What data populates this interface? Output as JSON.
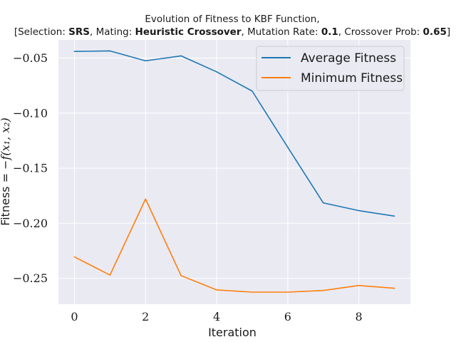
{
  "chart_data": {
    "type": "line",
    "title_line1": "Evolution of Fitness to KBF Function,",
    "title_line2": [
      {
        "text": "[Selection: ",
        "bold": false
      },
      {
        "text": "SRS",
        "bold": true
      },
      {
        "text": ", Mating: ",
        "bold": false
      },
      {
        "text": "Heuristic Crossover",
        "bold": true
      },
      {
        "text": ", Mutation Rate: ",
        "bold": false
      },
      {
        "text": "0.1",
        "bold": true
      },
      {
        "text": ", Crossover Prob: ",
        "bold": false
      },
      {
        "text": "0.65",
        "bold": true
      },
      {
        "text": "]",
        "bold": false
      }
    ],
    "xlabel": "Iteration",
    "ylabel_prefix": "Fitness = ",
    "ylabel_math": "−f(x₁, x₂)",
    "x": [
      0,
      1,
      2,
      3,
      4,
      5,
      6,
      7,
      8,
      9
    ],
    "xlim": [
      -0.45,
      9.45
    ],
    "ylim": [
      -0.2735,
      -0.0335
    ],
    "xticks": [
      0,
      2,
      4,
      6,
      8
    ],
    "xtick_labels": [
      "0",
      "2",
      "4",
      "6",
      "8"
    ],
    "yticks": [
      -0.25,
      -0.2,
      -0.15,
      -0.1,
      -0.05
    ],
    "ytick_labels": [
      "−0.25",
      "−0.20",
      "−0.15",
      "−0.10",
      "−0.05"
    ],
    "grid": true,
    "legend_position": "top-right",
    "series": [
      {
        "name": "Average Fitness",
        "color": "#1f77b4",
        "values": [
          -0.044,
          -0.0435,
          -0.0525,
          -0.048,
          -0.0625,
          -0.08,
          -0.131,
          -0.1815,
          -0.1885,
          -0.1935
        ]
      },
      {
        "name": "Minimum Fitness",
        "color": "#ff7f0e",
        "values": [
          -0.2305,
          -0.247,
          -0.178,
          -0.2475,
          -0.2605,
          -0.2625,
          -0.2625,
          -0.261,
          -0.2565,
          -0.259
        ]
      }
    ],
    "colors": {
      "plot_background": "#eaeaf2",
      "grid": "#ffffff"
    }
  }
}
